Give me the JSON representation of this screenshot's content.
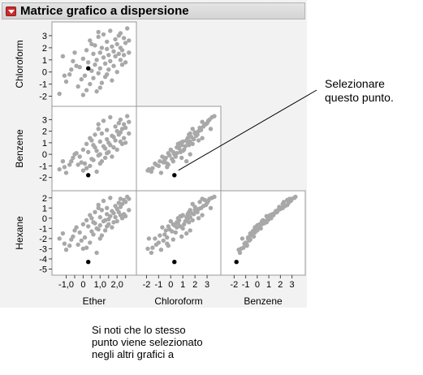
{
  "header": {
    "title": "Matrice grafico a dispersione"
  },
  "annotations": {
    "select_point": "Selezionare questo punto.",
    "note": "Si noti che lo stesso punto viene selezionato negli altri grafici a"
  },
  "colors": {
    "point": "#a8a8a8",
    "selected_point": "#000000",
    "panel_background": "#ffffff",
    "report_background": "#f2f2f2",
    "disclosure_icon": "#cc2a2a"
  },
  "chart_data": {
    "type": "scatter",
    "variables": [
      "Ether",
      "Chloroform",
      "Benzene",
      "Hexane"
    ],
    "row_variables": [
      "Chloroform",
      "Benzene",
      "Hexane"
    ],
    "column_variables": [
      "Ether",
      "Chloroform",
      "Benzene"
    ],
    "axes": {
      "Ether": {
        "range": [
          -1.6,
          2.9
        ],
        "ticks": [
          -1.0,
          -0.5,
          0.0,
          0.5,
          1.0,
          1.5,
          2.0,
          2.5
        ],
        "tick_labels": [
          "-1,0",
          "",
          "0",
          "",
          "1,0",
          "",
          "2,0",
          ""
        ]
      },
      "Chloroform": {
        "range": [
          -2.5,
          3.8
        ],
        "ticks": [
          -2,
          -1,
          0,
          1,
          2,
          3
        ],
        "tick_labels": [
          "-2",
          "-1",
          "0",
          "1",
          "2",
          "3"
        ]
      },
      "Benzene": {
        "range": [
          -2.8,
          3.8
        ],
        "ticks": [
          -2,
          -1,
          0,
          1,
          2,
          3
        ],
        "tick_labels": [
          "-2",
          "-1",
          "0",
          "1",
          "2",
          "3"
        ]
      },
      "Hexane": {
        "range": [
          -5.2,
          2.3
        ],
        "ticks": [
          -5,
          -4,
          -3,
          -2,
          -1,
          0,
          1,
          2
        ],
        "tick_labels": [
          "-5",
          "-4",
          "-3",
          "-2",
          "-1",
          "0",
          "1",
          "2"
        ]
      }
    },
    "selected_index": 0,
    "points": [
      {
        "Ether": 0.3,
        "Chloroform": 0.3,
        "Benzene": -1.8,
        "Hexane": -4.3
      },
      {
        "Ether": -1.4,
        "Chloroform": -1.8,
        "Benzene": -1.3,
        "Hexane": -2.0
      },
      {
        "Ether": -1.2,
        "Chloroform": 1.3,
        "Benzene": -0.6,
        "Hexane": -1.5
      },
      {
        "Ether": -1.0,
        "Chloroform": -0.8,
        "Benzene": -1.6,
        "Hexane": -3.1
      },
      {
        "Ether": -0.8,
        "Chloroform": -0.2,
        "Benzene": -0.9,
        "Hexane": -2.7
      },
      {
        "Ether": -0.6,
        "Chloroform": 0.9,
        "Benzene": -0.3,
        "Hexane": -1.8
      },
      {
        "Ether": -0.4,
        "Chloroform": 0.5,
        "Benzene": 0.1,
        "Hexane": -0.9
      },
      {
        "Ether": -0.3,
        "Chloroform": -1.2,
        "Benzene": -0.9,
        "Hexane": -2.6
      },
      {
        "Ether": -0.2,
        "Chloroform": 0.4,
        "Benzene": -0.2,
        "Hexane": -1.4
      },
      {
        "Ether": -0.1,
        "Chloroform": -0.6,
        "Benzene": -0.7,
        "Hexane": -2.2
      },
      {
        "Ether": 0.0,
        "Chloroform": 1.1,
        "Benzene": 0.4,
        "Hexane": -0.6
      },
      {
        "Ether": 0.1,
        "Chloroform": -0.3,
        "Benzene": -0.8,
        "Hexane": -1.9
      },
      {
        "Ether": 0.2,
        "Chloroform": 1.8,
        "Benzene": 0.9,
        "Hexane": -0.2
      },
      {
        "Ether": 0.2,
        "Chloroform": -1.5,
        "Benzene": -1.2,
        "Hexane": -2.9
      },
      {
        "Ether": 0.3,
        "Chloroform": 0.8,
        "Benzene": 0.2,
        "Hexane": -0.8
      },
      {
        "Ether": 0.4,
        "Chloroform": 2.6,
        "Benzene": 1.4,
        "Hexane": 0.3
      },
      {
        "Ether": 0.4,
        "Chloroform": -1.0,
        "Benzene": -1.0,
        "Hexane": -2.4
      },
      {
        "Ether": 0.5,
        "Chloroform": 0.1,
        "Benzene": -0.4,
        "Hexane": -1.3
      },
      {
        "Ether": 0.6,
        "Chloroform": 1.5,
        "Benzene": 0.8,
        "Hexane": -0.4
      },
      {
        "Ether": 0.6,
        "Chloroform": -0.5,
        "Benzene": -0.5,
        "Hexane": -1.6
      },
      {
        "Ether": 0.7,
        "Chloroform": 2.2,
        "Benzene": 1.7,
        "Hexane": 0.6
      },
      {
        "Ether": 0.7,
        "Chloroform": 0.6,
        "Benzene": 0.6,
        "Hexane": -0.5
      },
      {
        "Ether": 0.8,
        "Chloroform": -1.6,
        "Benzene": -1.5,
        "Hexane": -3.4
      },
      {
        "Ether": 0.8,
        "Chloroform": 1.0,
        "Benzene": 0.3,
        "Hexane": -1.0
      },
      {
        "Ether": 0.9,
        "Chloroform": 2.9,
        "Benzene": 2.6,
        "Hexane": 1.3
      },
      {
        "Ether": 0.9,
        "Chloroform": -0.1,
        "Benzene": -0.1,
        "Hexane": -1.1
      },
      {
        "Ether": 1.0,
        "Chloroform": 1.6,
        "Benzene": 1.1,
        "Hexane": 0.1
      },
      {
        "Ether": 1.0,
        "Chloroform": 0.3,
        "Benzene": 0.0,
        "Hexane": -0.7
      },
      {
        "Ether": 1.1,
        "Chloroform": 2.0,
        "Benzene": 1.8,
        "Hexane": 0.8
      },
      {
        "Ether": 1.1,
        "Chloroform": -0.9,
        "Benzene": -0.6,
        "Hexane": -1.7
      },
      {
        "Ether": 1.2,
        "Chloroform": 1.2,
        "Benzene": 0.7,
        "Hexane": -0.3
      },
      {
        "Ether": 1.2,
        "Chloroform": 3.1,
        "Benzene": 2.9,
        "Hexane": 1.7
      },
      {
        "Ether": 1.3,
        "Chloroform": 0.7,
        "Benzene": 0.5,
        "Hexane": -0.2
      },
      {
        "Ether": 1.3,
        "Chloroform": -0.4,
        "Benzene": -0.3,
        "Hexane": -1.2
      },
      {
        "Ether": 1.4,
        "Chloroform": 1.9,
        "Benzene": 1.3,
        "Hexane": 0.4
      },
      {
        "Ether": 1.4,
        "Chloroform": 2.5,
        "Benzene": 2.1,
        "Hexane": 1.0
      },
      {
        "Ether": 1.5,
        "Chloroform": 0.2,
        "Benzene": 0.2,
        "Hexane": -0.6
      },
      {
        "Ether": 1.5,
        "Chloroform": 1.4,
        "Benzene": 1.0,
        "Hexane": -0.1
      },
      {
        "Ether": 1.6,
        "Chloroform": 3.4,
        "Benzene": 3.2,
        "Hexane": 2.0
      },
      {
        "Ether": 1.6,
        "Chloroform": 0.9,
        "Benzene": 0.8,
        "Hexane": 0.2
      },
      {
        "Ether": 1.7,
        "Chloroform": 2.1,
        "Benzene": 1.6,
        "Hexane": 0.7
      },
      {
        "Ether": 1.7,
        "Chloroform": -0.7,
        "Benzene": -0.2,
        "Hexane": -0.9
      },
      {
        "Ether": 1.8,
        "Chloroform": 1.7,
        "Benzene": 1.5,
        "Hexane": 0.5
      },
      {
        "Ether": 1.8,
        "Chloroform": 0.5,
        "Benzene": 0.6,
        "Hexane": -0.4
      },
      {
        "Ether": 1.9,
        "Chloroform": 2.7,
        "Benzene": 2.4,
        "Hexane": 1.2
      },
      {
        "Ether": 1.9,
        "Chloroform": 1.3,
        "Benzene": 1.2,
        "Hexane": 0.1
      },
      {
        "Ether": 2.0,
        "Chloroform": 2.3,
        "Benzene": 2.0,
        "Hexane": 0.9
      },
      {
        "Ether": 2.0,
        "Chloroform": 0.0,
        "Benzene": 0.4,
        "Hexane": -0.3
      },
      {
        "Ether": 2.1,
        "Chloroform": 1.5,
        "Benzene": 1.7,
        "Hexane": 0.6
      },
      {
        "Ether": 2.1,
        "Chloroform": 3.0,
        "Benzene": 2.7,
        "Hexane": 1.5
      },
      {
        "Ether": 2.2,
        "Chloroform": 1.0,
        "Benzene": 1.1,
        "Hexane": 0.3
      },
      {
        "Ether": 2.2,
        "Chloroform": 2.0,
        "Benzene": 1.9,
        "Hexane": 1.1
      },
      {
        "Ether": 2.3,
        "Chloroform": 0.6,
        "Benzene": 0.9,
        "Hexane": 0.0
      },
      {
        "Ether": 2.3,
        "Chloroform": 1.8,
        "Benzene": 2.2,
        "Hexane": 1.4
      },
      {
        "Ether": 2.4,
        "Chloroform": 2.8,
        "Benzene": 2.6,
        "Hexane": 1.8
      },
      {
        "Ether": 2.4,
        "Chloroform": 1.4,
        "Benzene": 1.4,
        "Hexane": 0.4
      },
      {
        "Ether": 2.5,
        "Chloroform": 0.8,
        "Benzene": 1.0,
        "Hexane": 0.2
      },
      {
        "Ether": 2.5,
        "Chloroform": 2.4,
        "Benzene": 2.3,
        "Hexane": 1.6
      },
      {
        "Ether": 2.6,
        "Chloroform": 3.6,
        "Benzene": 3.3,
        "Hexane": 2.1
      },
      {
        "Ether": 2.7,
        "Chloroform": 1.6,
        "Benzene": 1.8,
        "Hexane": 0.8
      },
      {
        "Ether": 2.7,
        "Chloroform": 2.6,
        "Benzene": 2.8,
        "Hexane": 1.9
      },
      {
        "Ether": -1.1,
        "Chloroform": -0.3,
        "Benzene": -1.1,
        "Hexane": -2.5
      },
      {
        "Ether": -0.5,
        "Chloroform": 1.6,
        "Benzene": 0.0,
        "Hexane": -1.2
      },
      {
        "Ether": 0.0,
        "Chloroform": -1.9,
        "Benzene": -1.4,
        "Hexane": -3.0
      },
      {
        "Ether": 0.5,
        "Chloroform": 2.3,
        "Benzene": 1.2,
        "Hexane": 0.0
      },
      {
        "Ether": 1.0,
        "Chloroform": -1.3,
        "Benzene": -0.8,
        "Hexane": -2.0
      },
      {
        "Ether": 1.4,
        "Chloroform": -0.2,
        "Benzene": 0.1,
        "Hexane": -0.8
      },
      {
        "Ether": 0.9,
        "Chloroform": 3.3,
        "Benzene": 2.2,
        "Hexane": 1.0
      },
      {
        "Ether": 2.2,
        "Chloroform": 3.2,
        "Benzene": 3.0,
        "Hexane": 1.9
      },
      {
        "Ether": -0.7,
        "Chloroform": 0.2,
        "Benzene": -0.6,
        "Hexane": -2.1
      }
    ]
  }
}
